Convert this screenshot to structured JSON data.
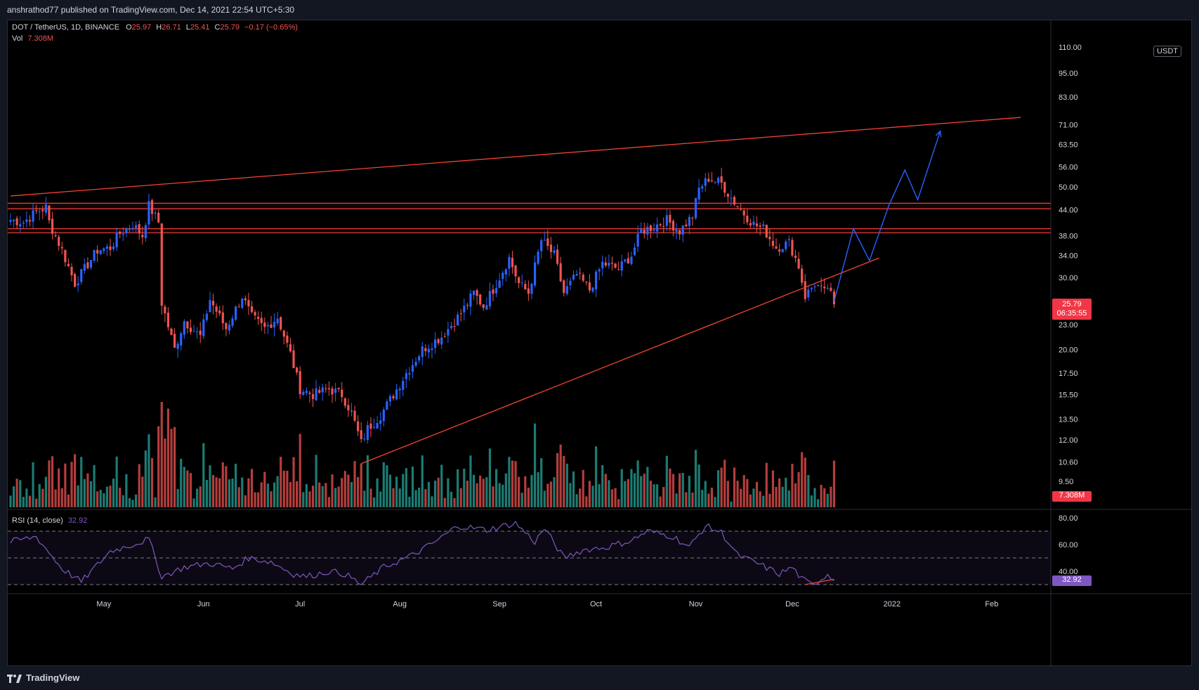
{
  "header": {
    "published_line": "anshrathod77 published on TradingView.com, Dec 14, 2021 22:54 UTC+5:30"
  },
  "legend": {
    "symbol": "DOT / TetherUS, 1D, BINANCE",
    "o_label": "O",
    "o_value": "25.97",
    "h_label": "H",
    "h_value": "26.71",
    "l_label": "L",
    "l_value": "25.41",
    "c_label": "C",
    "c_value": "25.79",
    "change": "−0.17 (−0.65%)",
    "vol_label": "Vol",
    "vol_value": "7.308M",
    "rsi_label": "RSI (14, close)",
    "rsi_value": "32.92"
  },
  "currency": "USDT",
  "footer": {
    "brand": "TradingView"
  },
  "colors": {
    "up": "#2962ff",
    "down": "#ef5350",
    "vol_up": "#26a69a",
    "vol_down": "#ef5350",
    "trendline": "#f44336",
    "projection": "#2962ff",
    "rsi": "#7e57c2",
    "background": "#000000"
  },
  "chart_data": {
    "type": "candlestick",
    "scale": "log",
    "price_ticks": [
      110.0,
      95.0,
      83.0,
      71.0,
      63.5,
      56.0,
      50.0,
      44.0,
      38.0,
      34.0,
      30.0,
      23.0,
      20.0,
      17.5,
      15.5,
      13.5,
      12.0,
      10.6,
      9.5
    ],
    "price_tick_labels": [
      "110.00",
      "95.00",
      "83.00",
      "71.00",
      "63.50",
      "56.00",
      "50.00",
      "44.00",
      "38.00",
      "34.00",
      "30.00",
      "23.00",
      "20.00",
      "17.50",
      "15.50",
      "13.50",
      "12.00",
      "10.60",
      "9.50"
    ],
    "x_labels": [
      {
        "label": "May",
        "date": "2021-05-01"
      },
      {
        "label": "Jun",
        "date": "2021-06-01"
      },
      {
        "label": "Jul",
        "date": "2021-07-01"
      },
      {
        "label": "Aug",
        "date": "2021-08-01"
      },
      {
        "label": "Sep",
        "date": "2021-09-01"
      },
      {
        "label": "Oct",
        "date": "2021-10-01"
      },
      {
        "label": "Nov",
        "date": "2021-11-01"
      },
      {
        "label": "Dec",
        "date": "2021-12-01"
      },
      {
        "label": "2022",
        "date": "2022-01-01"
      },
      {
        "label": "Feb",
        "date": "2022-02-01"
      }
    ],
    "start_date": "2021-04-02",
    "close_path": [
      [
        "2021-04-02",
        41.5
      ],
      [
        "2021-04-06",
        41.0
      ],
      [
        "2021-04-10",
        43.5
      ],
      [
        "2021-04-13",
        44.5
      ],
      [
        "2021-04-14",
        41.0
      ],
      [
        "2021-04-18",
        35.0
      ],
      [
        "2021-04-22",
        29.0
      ],
      [
        "2021-04-25",
        31.5
      ],
      [
        "2021-04-29",
        35.0
      ],
      [
        "2021-05-03",
        35.5
      ],
      [
        "2021-05-06",
        38.5
      ],
      [
        "2021-05-10",
        40.5
      ],
      [
        "2021-05-13",
        38.0
      ],
      [
        "2021-05-15",
        45.0
      ],
      [
        "2021-05-18",
        41.0
      ],
      [
        "2021-05-19",
        26.0
      ],
      [
        "2021-05-23",
        20.0
      ],
      [
        "2021-05-26",
        23.5
      ],
      [
        "2021-05-31",
        21.5
      ],
      [
        "2021-06-03",
        26.5
      ],
      [
        "2021-06-08",
        22.5
      ],
      [
        "2021-06-13",
        27.0
      ],
      [
        "2021-06-16",
        24.0
      ],
      [
        "2021-06-20",
        22.5
      ],
      [
        "2021-06-24",
        24.0
      ],
      [
        "2021-06-28",
        19.5
      ],
      [
        "2021-07-01",
        16.0
      ],
      [
        "2021-07-05",
        15.5
      ],
      [
        "2021-07-10",
        16.0
      ],
      [
        "2021-07-14",
        15.5
      ],
      [
        "2021-07-17",
        14.0
      ],
      [
        "2021-07-20",
        11.8
      ],
      [
        "2021-07-22",
        12.8
      ],
      [
        "2021-07-26",
        13.8
      ],
      [
        "2021-07-30",
        15.5
      ],
      [
        "2021-08-03",
        17.5
      ],
      [
        "2021-08-08",
        20.0
      ],
      [
        "2021-08-14",
        21.5
      ],
      [
        "2021-08-20",
        24.5
      ],
      [
        "2021-08-24",
        27.5
      ],
      [
        "2021-08-27",
        25.5
      ],
      [
        "2021-08-31",
        29.0
      ],
      [
        "2021-09-04",
        33.5
      ],
      [
        "2021-09-07",
        29.0
      ],
      [
        "2021-09-10",
        27.5
      ],
      [
        "2021-09-14",
        37.0
      ],
      [
        "2021-09-18",
        34.0
      ],
      [
        "2021-09-21",
        27.5
      ],
      [
        "2021-09-25",
        30.5
      ],
      [
        "2021-09-29",
        28.0
      ],
      [
        "2021-10-03",
        32.5
      ],
      [
        "2021-10-08",
        31.5
      ],
      [
        "2021-10-12",
        34.0
      ],
      [
        "2021-10-15",
        39.0
      ],
      [
        "2021-10-19",
        40.0
      ],
      [
        "2021-10-23",
        41.5
      ],
      [
        "2021-10-27",
        39.0
      ],
      [
        "2021-10-31",
        42.5
      ],
      [
        "2021-11-02",
        49.5
      ],
      [
        "2021-11-05",
        52.5
      ],
      [
        "2021-11-09",
        51.0
      ],
      [
        "2021-11-12",
        47.0
      ],
      [
        "2021-11-16",
        43.0
      ],
      [
        "2021-11-19",
        40.5
      ],
      [
        "2021-11-22",
        39.5
      ],
      [
        "2021-11-26",
        35.5
      ],
      [
        "2021-11-30",
        36.5
      ],
      [
        "2021-12-03",
        32.0
      ],
      [
        "2021-12-05",
        27.0
      ],
      [
        "2021-12-08",
        29.0
      ],
      [
        "2021-12-11",
        27.5
      ],
      [
        "2021-12-12",
        28.5
      ],
      [
        "2021-12-14",
        25.79
      ]
    ],
    "last_price": "25.79",
    "countdown": "06:35:55",
    "volume_label": "7.308M",
    "rsi": {
      "period": 14,
      "levels": [
        70,
        50,
        30
      ],
      "ticks": [
        80,
        60,
        40
      ],
      "tick_labels": [
        "80.00",
        "60.00",
        "40.00"
      ],
      "value": "32.92",
      "path": [
        [
          "2021-04-02",
          62
        ],
        [
          "2021-04-10",
          66
        ],
        [
          "2021-04-18",
          42
        ],
        [
          "2021-04-24",
          32
        ],
        [
          "2021-05-03",
          55
        ],
        [
          "2021-05-10",
          60
        ],
        [
          "2021-05-15",
          64
        ],
        [
          "2021-05-19",
          36
        ],
        [
          "2021-05-26",
          43
        ],
        [
          "2021-06-03",
          46
        ],
        [
          "2021-06-10",
          42
        ],
        [
          "2021-06-15",
          50
        ],
        [
          "2021-06-22",
          47
        ],
        [
          "2021-06-29",
          38
        ],
        [
          "2021-07-03",
          36
        ],
        [
          "2021-07-10",
          40
        ],
        [
          "2021-07-15",
          38
        ],
        [
          "2021-07-20",
          30
        ],
        [
          "2021-07-27",
          43
        ],
        [
          "2021-08-05",
          52
        ],
        [
          "2021-08-12",
          62
        ],
        [
          "2021-08-19",
          74
        ],
        [
          "2021-08-28",
          71
        ],
        [
          "2021-09-06",
          76
        ],
        [
          "2021-09-12",
          62
        ],
        [
          "2021-09-15",
          72
        ],
        [
          "2021-09-21",
          50
        ],
        [
          "2021-09-27",
          56
        ],
        [
          "2021-10-04",
          58
        ],
        [
          "2021-10-12",
          63
        ],
        [
          "2021-10-17",
          70
        ],
        [
          "2021-10-25",
          66
        ],
        [
          "2021-10-30",
          58
        ],
        [
          "2021-11-04",
          74
        ],
        [
          "2021-11-09",
          69
        ],
        [
          "2021-11-14",
          52
        ],
        [
          "2021-11-20",
          46
        ],
        [
          "2021-11-27",
          38
        ],
        [
          "2021-12-01",
          43
        ],
        [
          "2021-12-04",
          34
        ],
        [
          "2021-12-07",
          30
        ],
        [
          "2021-12-10",
          34
        ],
        [
          "2021-12-12",
          38
        ],
        [
          "2021-12-14",
          33
        ]
      ]
    },
    "drawings": {
      "upper_channel": [
        [
          "2021-04-02",
          47.5
        ],
        [
          "2022-02-10",
          74.0
        ]
      ],
      "lower_trendline": [
        [
          "2021-07-20",
          10.5
        ],
        [
          "2021-12-28",
          33.5
        ]
      ],
      "resistance_zone_1": [
        44.2,
        45.6
      ],
      "resistance_zone_2": [
        38.6,
        39.5
      ],
      "projection": [
        [
          "2021-12-14",
          26.2
        ],
        [
          "2021-12-20",
          39.5
        ],
        [
          "2021-12-25",
          33.0
        ],
        [
          "2021-12-31",
          45.0
        ],
        [
          "2022-01-05",
          55.0
        ],
        [
          "2022-01-09",
          46.5
        ],
        [
          "2022-01-16",
          68.5
        ]
      ],
      "rsi_divergence": [
        [
          "2021-12-05",
          30
        ],
        [
          "2021-12-14",
          34
        ]
      ]
    }
  }
}
